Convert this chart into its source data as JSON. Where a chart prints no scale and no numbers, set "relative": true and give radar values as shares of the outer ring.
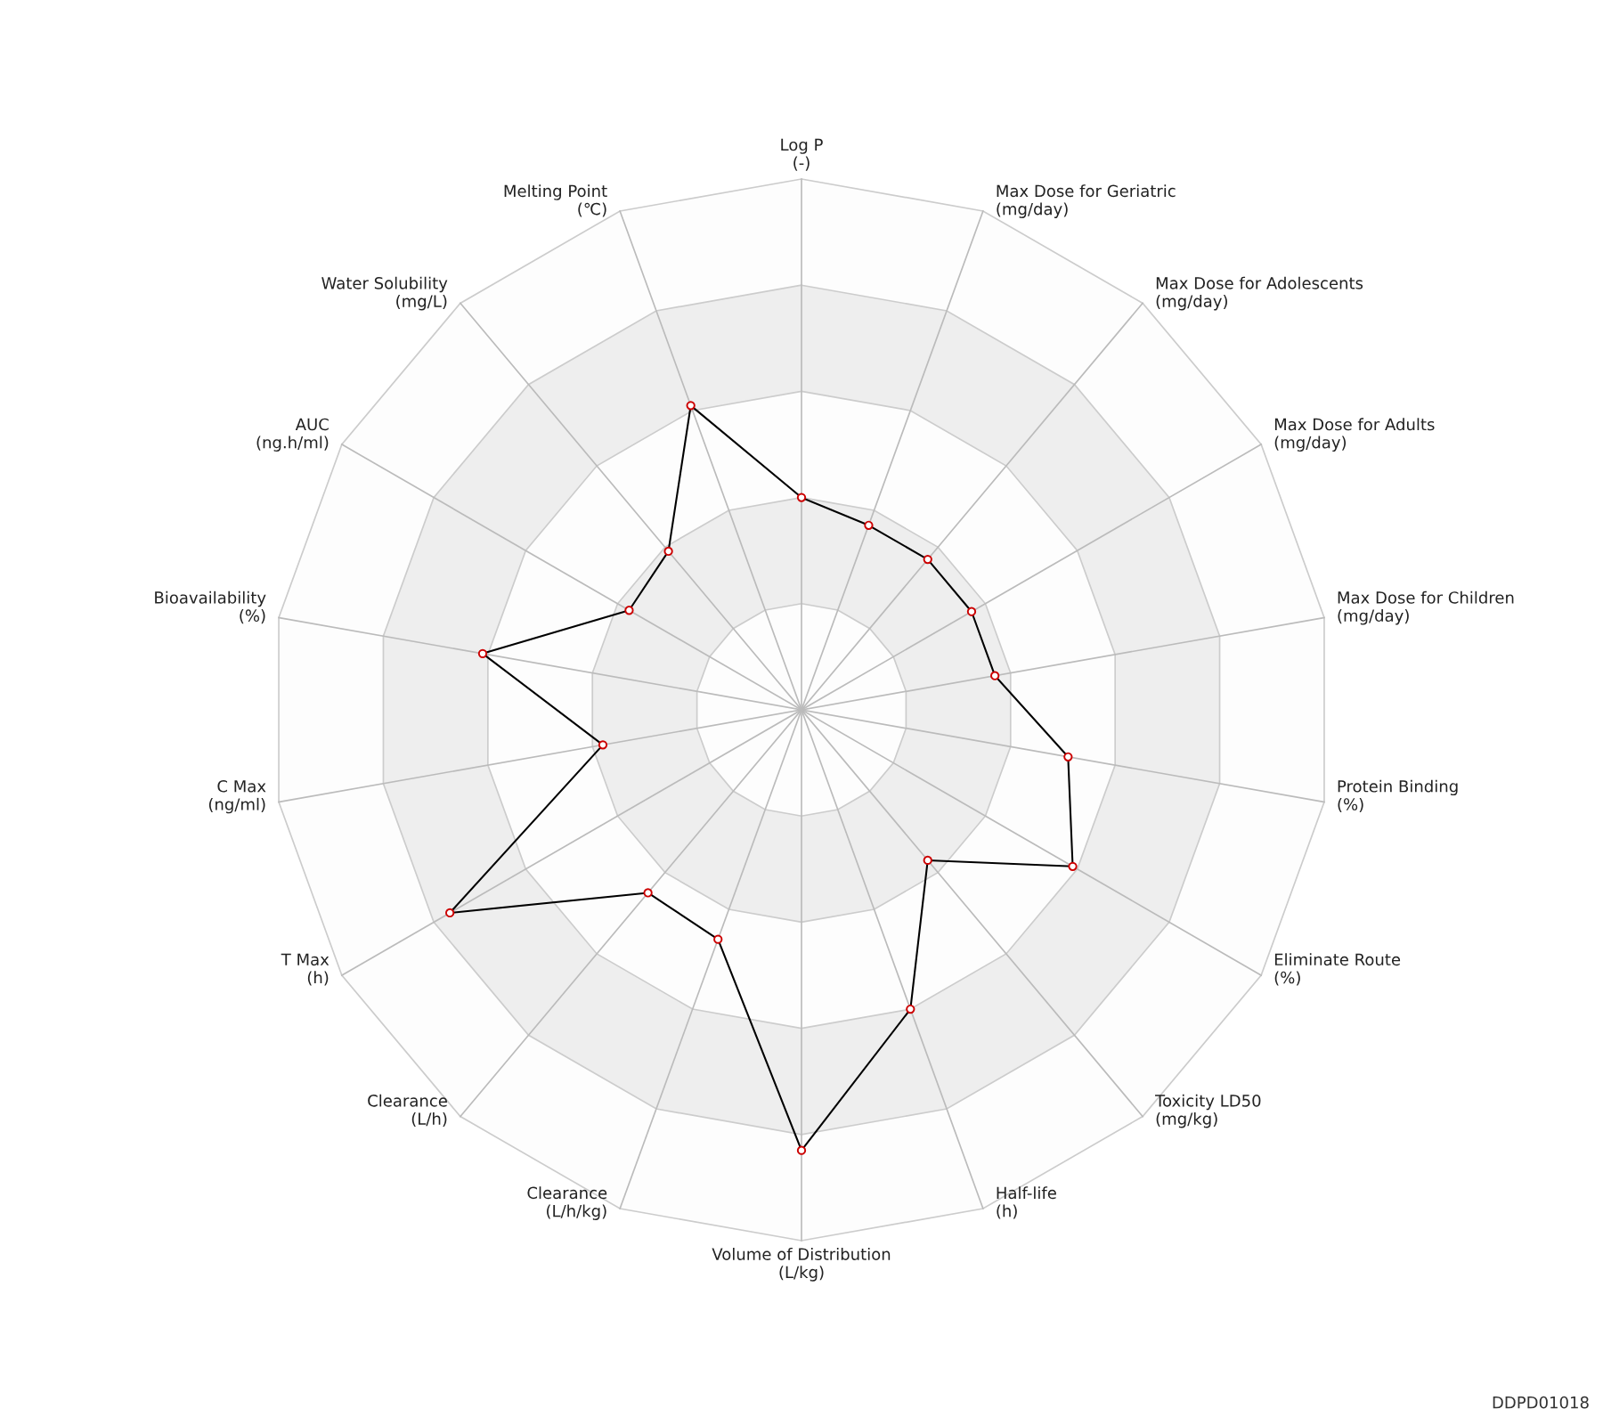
{
  "chart_data": {
    "type": "radar",
    "relative": true,
    "grid": true,
    "marker": "circle",
    "line_style": "solid",
    "categories": [
      "Log P\n(-)",
      "Max Dose for Geriatric\n(mg/day)",
      "Max Dose for Adolescents\n(mg/day)",
      "Max Dose for Adults\n(mg/day)",
      "Max Dose for Children\n(mg/day)",
      "Protein Binding\n(%)",
      "Eliminate Route\n(%)",
      "Toxicity LD50\n(mg/kg)",
      "Half-life\n(h)",
      "Volume of Distribution\n(L/kg)",
      "Clearance\n(L/h/kg)",
      "Clearance\n(L/h)",
      "T Max\n(h)",
      "C Max\n(ng/ml)",
      "Bioavailability\n(%)",
      "AUC\n(ng.h/ml)",
      "Water Solubility\n(mg/L)",
      "Melting Point\n(℃)"
    ],
    "series": [
      {
        "color": "#000000",
        "values": [
          0.4,
          0.37,
          0.37,
          0.37,
          0.37,
          0.51,
          0.59,
          0.37,
          0.6,
          0.83,
          0.46,
          0.45,
          0.765,
          0.38,
          0.61,
          0.375,
          0.39,
          0.61
        ]
      }
    ],
    "annotations": [
      "DDPD01018"
    ]
  }
}
